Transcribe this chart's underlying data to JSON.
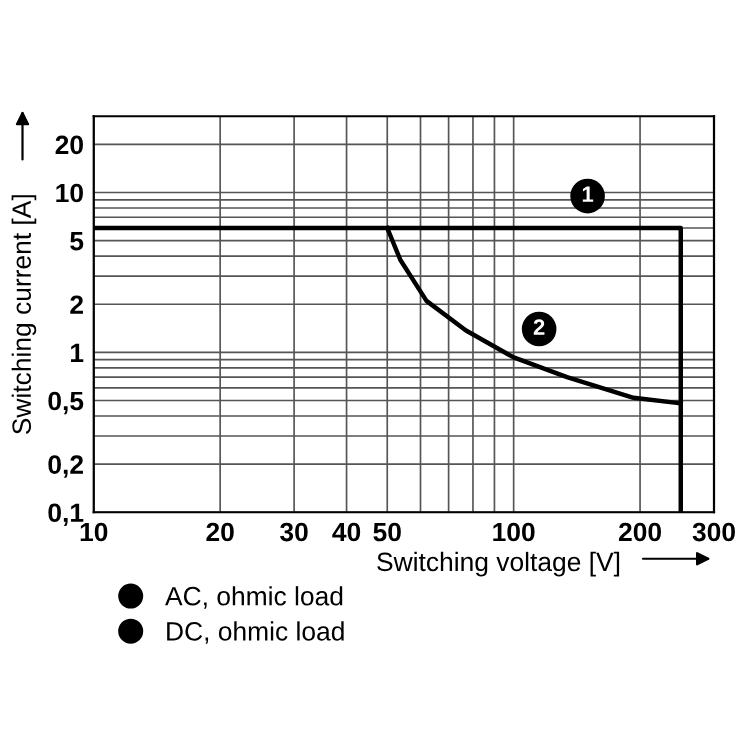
{
  "chart_data": {
    "type": "line",
    "xlabel": "Switching voltage [V]",
    "ylabel": "Switching current [A]",
    "log": "xy",
    "series": [
      {
        "name": "AC, ohmic load",
        "color": "#000000",
        "x": [
          10,
          250,
          250
        ],
        "values": [
          6,
          6,
          0.1
        ]
      },
      {
        "name": "DC, ohmic load",
        "color": "#000000",
        "x": [
          50,
          53.7,
          62,
          77,
          100,
          134,
          193,
          250
        ],
        "values": [
          6,
          3.8,
          2.1,
          1.37,
          0.93,
          0.7,
          0.52,
          0.48
        ]
      }
    ],
    "xlim": [
      10,
      300
    ],
    "ylim": [
      0.1,
      30
    ],
    "xticks": [
      10,
      20,
      30,
      40,
      50,
      {
        "value": 60,
        "label": null
      },
      {
        "value": 70,
        "label": null
      },
      {
        "value": 80,
        "label": null
      },
      {
        "value": 90,
        "label": null
      },
      100,
      200,
      300
    ],
    "yticks": [
      {
        "value": 0.1,
        "label": "0,1"
      },
      {
        "value": 0.2,
        "label": "0,2"
      },
      {
        "value": 0.3,
        "label": null
      },
      {
        "value": 0.4,
        "label": null
      },
      {
        "value": 0.5,
        "label": "0,5"
      },
      {
        "value": 0.6,
        "label": null
      },
      {
        "value": 0.7,
        "label": null
      },
      {
        "value": 0.8,
        "label": null
      },
      {
        "value": 0.9,
        "label": null
      },
      1,
      2,
      {
        "value": 3,
        "label": null
      },
      {
        "value": 4,
        "label": null
      },
      5,
      {
        "value": 6,
        "label": null
      },
      {
        "value": 7,
        "label": null
      },
      {
        "value": 8,
        "label": null
      },
      {
        "value": 9,
        "label": null
      },
      10,
      20
    ],
    "annotations": [
      {
        "text": "1",
        "x": 150,
        "y": 9.5
      },
      {
        "text": "2",
        "x": 115,
        "y": 1.4
      }
    ],
    "grid": true,
    "legend": "bottom left",
    "marker": "none",
    "line_style": "solid"
  }
}
